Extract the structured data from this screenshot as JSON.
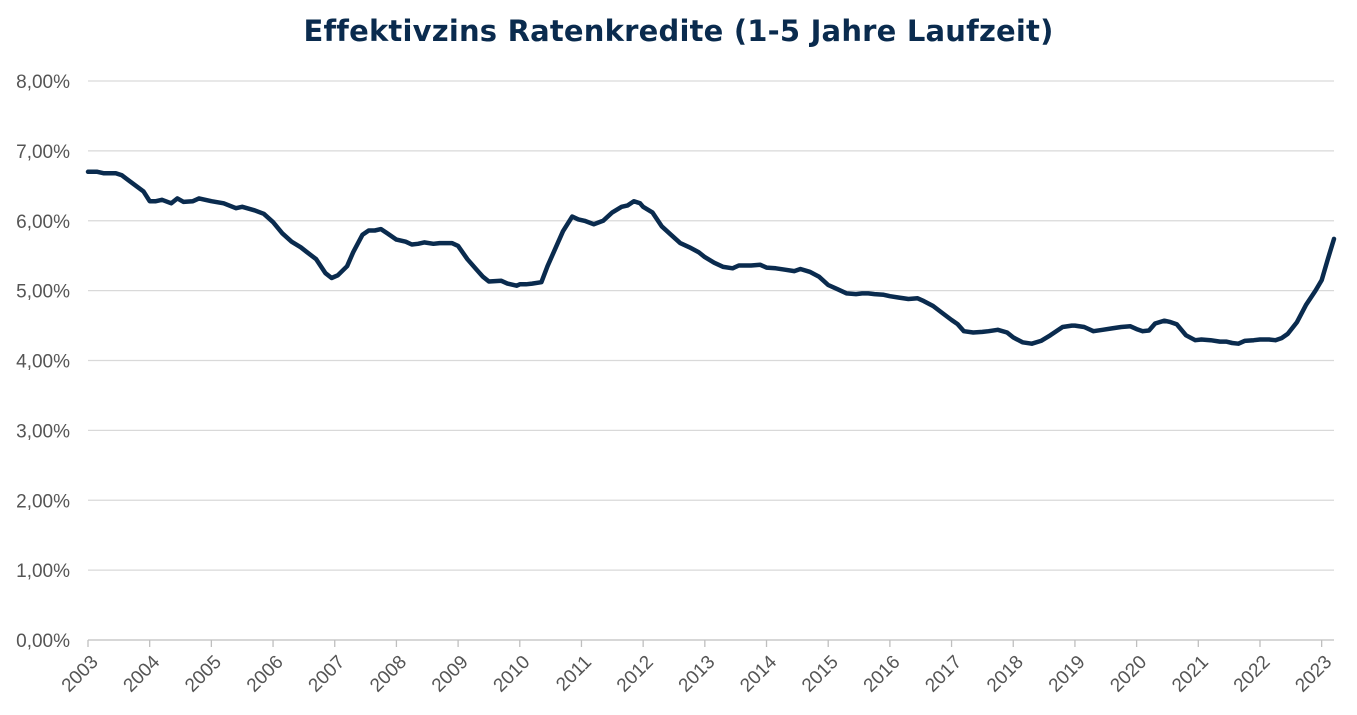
{
  "chart_data": {
    "type": "line",
    "title": "Effektivzins Ratenkredite (1-5 Jahre Laufzeit)",
    "xlabel": "",
    "ylabel": "",
    "ylim": [
      0,
      8
    ],
    "xlim": [
      2003.0,
      2023.2
    ],
    "grid": true,
    "legend": "none",
    "line_color": "#0a2b4e",
    "y_ticks": [
      0,
      1,
      2,
      3,
      4,
      5,
      6,
      7,
      8
    ],
    "y_tick_labels": [
      "0,00%",
      "1,00%",
      "2,00%",
      "3,00%",
      "4,00%",
      "5,00%",
      "6,00%",
      "7,00%",
      "8,00%"
    ],
    "x_ticks": [
      2003,
      2004,
      2005,
      2006,
      2007,
      2008,
      2009,
      2010,
      2011,
      2012,
      2013,
      2014,
      2015,
      2016,
      2017,
      2018,
      2019,
      2020,
      2021,
      2022,
      2023
    ],
    "x_tick_labels": [
      "2003",
      "2004",
      "2005",
      "2006",
      "2007",
      "2008",
      "2009",
      "2010",
      "2011",
      "2012",
      "2013",
      "2014",
      "2015",
      "2016",
      "2017",
      "2018",
      "2019",
      "2020",
      "2021",
      "2022",
      "2023"
    ],
    "series": [
      {
        "name": "",
        "points": [
          [
            2003.0,
            6.7
          ],
          [
            2003.15,
            6.7
          ],
          [
            2003.25,
            6.68
          ],
          [
            2003.45,
            6.68
          ],
          [
            2003.55,
            6.65
          ],
          [
            2003.7,
            6.55
          ],
          [
            2003.9,
            6.42
          ],
          [
            2004.0,
            6.28
          ],
          [
            2004.1,
            6.28
          ],
          [
            2004.2,
            6.3
          ],
          [
            2004.35,
            6.25
          ],
          [
            2004.45,
            6.32
          ],
          [
            2004.55,
            6.27
          ],
          [
            2004.7,
            6.28
          ],
          [
            2004.8,
            6.32
          ],
          [
            2004.9,
            6.3
          ],
          [
            2005.0,
            6.28
          ],
          [
            2005.2,
            6.25
          ],
          [
            2005.4,
            6.18
          ],
          [
            2005.5,
            6.2
          ],
          [
            2005.7,
            6.15
          ],
          [
            2005.85,
            6.1
          ],
          [
            2006.0,
            5.98
          ],
          [
            2006.15,
            5.82
          ],
          [
            2006.3,
            5.7
          ],
          [
            2006.45,
            5.62
          ],
          [
            2006.55,
            5.55
          ],
          [
            2006.7,
            5.45
          ],
          [
            2006.85,
            5.25
          ],
          [
            2006.95,
            5.18
          ],
          [
            2007.05,
            5.22
          ],
          [
            2007.2,
            5.35
          ],
          [
            2007.3,
            5.55
          ],
          [
            2007.45,
            5.8
          ],
          [
            2007.55,
            5.86
          ],
          [
            2007.65,
            5.86
          ],
          [
            2007.75,
            5.88
          ],
          [
            2007.85,
            5.82
          ],
          [
            2008.0,
            5.73
          ],
          [
            2008.15,
            5.7
          ],
          [
            2008.25,
            5.66
          ],
          [
            2008.35,
            5.67
          ],
          [
            2008.45,
            5.69
          ],
          [
            2008.6,
            5.67
          ],
          [
            2008.7,
            5.68
          ],
          [
            2008.9,
            5.68
          ],
          [
            2009.0,
            5.64
          ],
          [
            2009.15,
            5.45
          ],
          [
            2009.3,
            5.3
          ],
          [
            2009.4,
            5.2
          ],
          [
            2009.5,
            5.13
          ],
          [
            2009.7,
            5.14
          ],
          [
            2009.8,
            5.1
          ],
          [
            2009.95,
            5.07
          ],
          [
            2010.0,
            5.09
          ],
          [
            2010.1,
            5.09
          ],
          [
            2010.2,
            5.1
          ],
          [
            2010.35,
            5.12
          ],
          [
            2010.45,
            5.35
          ],
          [
            2010.55,
            5.55
          ],
          [
            2010.7,
            5.85
          ],
          [
            2010.85,
            6.06
          ],
          [
            2010.95,
            6.02
          ],
          [
            2011.05,
            6.0
          ],
          [
            2011.2,
            5.95
          ],
          [
            2011.35,
            6.0
          ],
          [
            2011.5,
            6.12
          ],
          [
            2011.65,
            6.2
          ],
          [
            2011.75,
            6.22
          ],
          [
            2011.85,
            6.28
          ],
          [
            2011.95,
            6.25
          ],
          [
            2012.0,
            6.2
          ],
          [
            2012.15,
            6.12
          ],
          [
            2012.3,
            5.92
          ],
          [
            2012.45,
            5.8
          ],
          [
            2012.6,
            5.68
          ],
          [
            2012.75,
            5.62
          ],
          [
            2012.9,
            5.55
          ],
          [
            2013.0,
            5.48
          ],
          [
            2013.15,
            5.4
          ],
          [
            2013.3,
            5.34
          ],
          [
            2013.45,
            5.32
          ],
          [
            2013.55,
            5.36
          ],
          [
            2013.75,
            5.36
          ],
          [
            2013.9,
            5.37
          ],
          [
            2014.0,
            5.33
          ],
          [
            2014.15,
            5.32
          ],
          [
            2014.3,
            5.3
          ],
          [
            2014.45,
            5.28
          ],
          [
            2014.55,
            5.31
          ],
          [
            2014.7,
            5.27
          ],
          [
            2014.85,
            5.2
          ],
          [
            2015.0,
            5.08
          ],
          [
            2015.15,
            5.02
          ],
          [
            2015.3,
            4.96
          ],
          [
            2015.45,
            4.95
          ],
          [
            2015.55,
            4.96
          ],
          [
            2015.65,
            4.96
          ],
          [
            2015.75,
            4.95
          ],
          [
            2015.9,
            4.94
          ],
          [
            2016.0,
            4.92
          ],
          [
            2016.15,
            4.9
          ],
          [
            2016.3,
            4.88
          ],
          [
            2016.45,
            4.89
          ],
          [
            2016.55,
            4.85
          ],
          [
            2016.7,
            4.78
          ],
          [
            2016.85,
            4.68
          ],
          [
            2017.0,
            4.58
          ],
          [
            2017.1,
            4.52
          ],
          [
            2017.2,
            4.42
          ],
          [
            2017.35,
            4.4
          ],
          [
            2017.5,
            4.41
          ],
          [
            2017.6,
            4.42
          ],
          [
            2017.75,
            4.44
          ],
          [
            2017.9,
            4.4
          ],
          [
            2018.0,
            4.33
          ],
          [
            2018.15,
            4.26
          ],
          [
            2018.3,
            4.24
          ],
          [
            2018.45,
            4.28
          ],
          [
            2018.6,
            4.36
          ],
          [
            2018.8,
            4.48
          ],
          [
            2018.95,
            4.5
          ],
          [
            2019.0,
            4.5
          ],
          [
            2019.15,
            4.48
          ],
          [
            2019.3,
            4.42
          ],
          [
            2019.45,
            4.44
          ],
          [
            2019.6,
            4.46
          ],
          [
            2019.75,
            4.48
          ],
          [
            2019.9,
            4.49
          ],
          [
            2020.0,
            4.45
          ],
          [
            2020.1,
            4.42
          ],
          [
            2020.2,
            4.43
          ],
          [
            2020.3,
            4.53
          ],
          [
            2020.45,
            4.57
          ],
          [
            2020.55,
            4.55
          ],
          [
            2020.65,
            4.52
          ],
          [
            2020.8,
            4.36
          ],
          [
            2020.95,
            4.29
          ],
          [
            2021.05,
            4.3
          ],
          [
            2021.2,
            4.29
          ],
          [
            2021.35,
            4.27
          ],
          [
            2021.45,
            4.27
          ],
          [
            2021.55,
            4.25
          ],
          [
            2021.65,
            4.24
          ],
          [
            2021.75,
            4.28
          ],
          [
            2021.9,
            4.29
          ],
          [
            2022.0,
            4.3
          ],
          [
            2022.15,
            4.3
          ],
          [
            2022.25,
            4.29
          ],
          [
            2022.35,
            4.32
          ],
          [
            2022.45,
            4.38
          ],
          [
            2022.6,
            4.55
          ],
          [
            2022.75,
            4.8
          ],
          [
            2022.9,
            5.0
          ],
          [
            2023.0,
            5.15
          ],
          [
            2023.1,
            5.45
          ],
          [
            2023.2,
            5.74
          ]
        ]
      }
    ]
  }
}
